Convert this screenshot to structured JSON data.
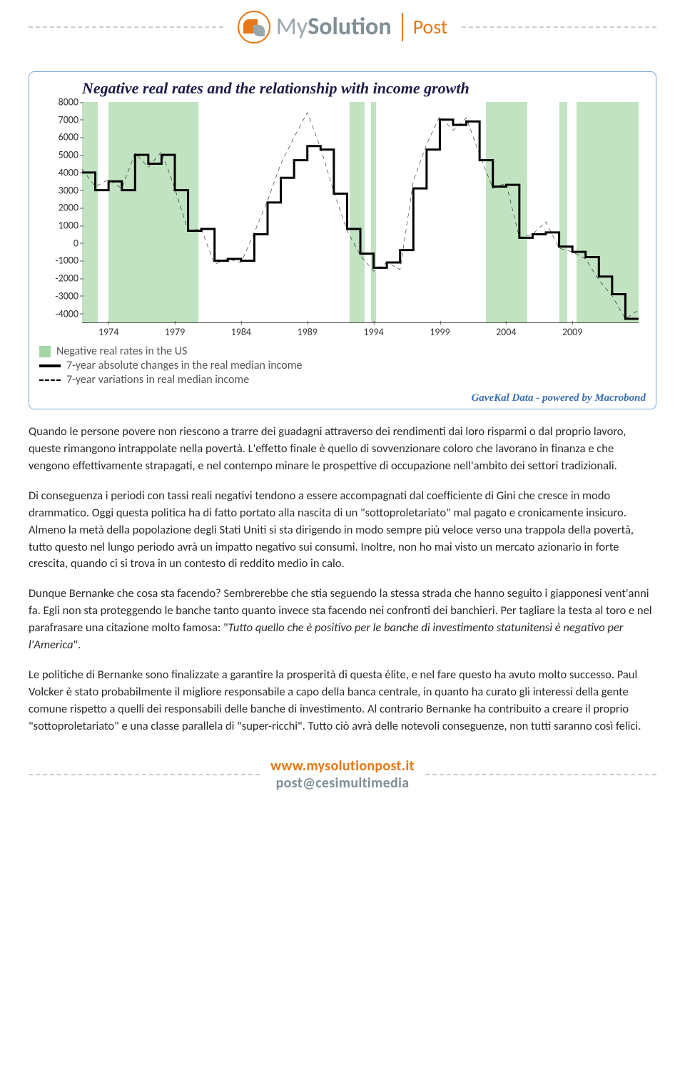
{
  "logo": {
    "text_main": "MySolution",
    "text_sub": "Post"
  },
  "chart": {
    "type": "line",
    "title": "Negative real rates and the relationship with income growth",
    "credit": "GaveKal Data - powered by Macrobond",
    "background_color": "#ffffff",
    "border_color": "#7aa8d8",
    "x_range": [
      1972,
      2014
    ],
    "x_ticks": [
      1974,
      1979,
      1984,
      1989,
      1994,
      1999,
      2004,
      2009
    ],
    "y_range": [
      -4500,
      8000
    ],
    "y_ticks": [
      -4000,
      -3000,
      -2000,
      -1000,
      0,
      1000,
      2000,
      3000,
      4000,
      5000,
      6000,
      7000,
      8000
    ],
    "band_color": "rgba(142,204,142,0.55)",
    "bands": [
      [
        1972,
        1973.2
      ],
      [
        1974,
        1980.8
      ],
      [
        1992.2,
        1993.3
      ],
      [
        1993.8,
        1994.2
      ],
      [
        2002.5,
        2005.6
      ],
      [
        2008,
        2008.6
      ],
      [
        2009.3,
        2014
      ]
    ],
    "legend": [
      {
        "kind": "band",
        "label": "Negative real rates in the US"
      },
      {
        "kind": "solid",
        "label": "7-year absolute changes in the real median income"
      },
      {
        "kind": "dash",
        "label": "7-year variations in real median income"
      }
    ],
    "series_solid": {
      "color": "#000000",
      "width": 3,
      "points": [
        [
          1972,
          4000
        ],
        [
          1973,
          4000
        ],
        [
          1973,
          3000
        ],
        [
          1974,
          3000
        ],
        [
          1974,
          3500
        ],
        [
          1975,
          3500
        ],
        [
          1975,
          3000
        ],
        [
          1976,
          3000
        ],
        [
          1976,
          5000
        ],
        [
          1977,
          5000
        ],
        [
          1977,
          4500
        ],
        [
          1978,
          4500
        ],
        [
          1978,
          5000
        ],
        [
          1979,
          5000
        ],
        [
          1979,
          3000
        ],
        [
          1980,
          3000
        ],
        [
          1980,
          700
        ],
        [
          1981,
          700
        ],
        [
          1981,
          800
        ],
        [
          1982,
          800
        ],
        [
          1982,
          -1000
        ],
        [
          1983,
          -1000
        ],
        [
          1983,
          -900
        ],
        [
          1984,
          -900
        ],
        [
          1984,
          -1000
        ],
        [
          1985,
          -1000
        ],
        [
          1985,
          500
        ],
        [
          1986,
          500
        ],
        [
          1986,
          2300
        ],
        [
          1987,
          2300
        ],
        [
          1987,
          3700
        ],
        [
          1988,
          3700
        ],
        [
          1988,
          4700
        ],
        [
          1989,
          4700
        ],
        [
          1989,
          5500
        ],
        [
          1990,
          5500
        ],
        [
          1990,
          5300
        ],
        [
          1991,
          5300
        ],
        [
          1991,
          2800
        ],
        [
          1992,
          2800
        ],
        [
          1992,
          800
        ],
        [
          1993,
          800
        ],
        [
          1993,
          -600
        ],
        [
          1994,
          -600
        ],
        [
          1994,
          -1400
        ],
        [
          1995,
          -1400
        ],
        [
          1995,
          -1100
        ],
        [
          1996,
          -1100
        ],
        [
          1996,
          -400
        ],
        [
          1997,
          -400
        ],
        [
          1997,
          3100
        ],
        [
          1998,
          3100
        ],
        [
          1998,
          5300
        ],
        [
          1999,
          5300
        ],
        [
          1999,
          7000
        ],
        [
          2000,
          7000
        ],
        [
          2000,
          6700
        ],
        [
          2001,
          6700
        ],
        [
          2001,
          6900
        ],
        [
          2002,
          6900
        ],
        [
          2002,
          4700
        ],
        [
          2003,
          4700
        ],
        [
          2003,
          3200
        ],
        [
          2004,
          3200
        ],
        [
          2004,
          3300
        ],
        [
          2005,
          3300
        ],
        [
          2005,
          300
        ],
        [
          2006,
          300
        ],
        [
          2006,
          500
        ],
        [
          2007,
          500
        ],
        [
          2007,
          600
        ],
        [
          2008,
          600
        ],
        [
          2008,
          -200
        ],
        [
          2009,
          -200
        ],
        [
          2009,
          -500
        ],
        [
          2010,
          -500
        ],
        [
          2010,
          -800
        ],
        [
          2011,
          -800
        ],
        [
          2011,
          -1900
        ],
        [
          2012,
          -1900
        ],
        [
          2012,
          -2900
        ],
        [
          2013,
          -2900
        ],
        [
          2013,
          -4300
        ],
        [
          2014,
          -4300
        ]
      ]
    },
    "series_dash": {
      "color": "#000000",
      "width": 1.6,
      "dash": "6 5",
      "points": [
        [
          1972,
          4200
        ],
        [
          1973,
          3200
        ],
        [
          1974,
          3600
        ],
        [
          1975,
          3100
        ],
        [
          1976,
          5100
        ],
        [
          1977,
          4300
        ],
        [
          1978,
          5200
        ],
        [
          1979,
          3100
        ],
        [
          1980,
          700
        ],
        [
          1981,
          800
        ],
        [
          1982,
          -1200
        ],
        [
          1983,
          -900
        ],
        [
          1984,
          -1100
        ],
        [
          1985,
          600
        ],
        [
          1986,
          2400
        ],
        [
          1987,
          4500
        ],
        [
          1988,
          6000
        ],
        [
          1989,
          7400
        ],
        [
          1990,
          5400
        ],
        [
          1991,
          2900
        ],
        [
          1992,
          700
        ],
        [
          1993,
          -700
        ],
        [
          1994,
          -1600
        ],
        [
          1995,
          -1100
        ],
        [
          1996,
          -1500
        ],
        [
          1997,
          3500
        ],
        [
          1998,
          5600
        ],
        [
          1999,
          7200
        ],
        [
          2000,
          6400
        ],
        [
          2001,
          7100
        ],
        [
          2002,
          5000
        ],
        [
          2003,
          3100
        ],
        [
          2004,
          3400
        ],
        [
          2005,
          300
        ],
        [
          2006,
          500
        ],
        [
          2007,
          1200
        ],
        [
          2008,
          -300
        ],
        [
          2009,
          -500
        ],
        [
          2010,
          -900
        ],
        [
          2011,
          -2100
        ],
        [
          2012,
          -3000
        ],
        [
          2013,
          -4300
        ],
        [
          2014,
          -3800
        ]
      ]
    }
  },
  "paragraphs": [
    "Quando le persone povere non riescono a trarre dei guadagni attraverso dei rendimenti dai loro risparmi o dal proprio lavoro, queste rimangono intrappolate nella povertà. L'effetto finale è quello di sovvenzionare coloro che lavorano in finanza e che vengono effettivamente strapagati, e nel contempo minare le prospettive di occupazione nell'ambito dei settori tradizionali.",
    "Di conseguenza i periodi con tassi reali negativi tendono a essere accompagnati dal coefficiente di Gini che cresce in modo drammatico. Oggi questa politica ha di fatto portato alla nascita di un \"sottoproletariato\" mal pagato e cronicamente insicuro. Almeno la metà della popolazione degli Stati Uniti si sta dirigendo in modo sempre più veloce verso una trappola della povertà, tutto questo nel lungo periodo avrà un impatto negativo sui consumi. Inoltre, non ho mai visto un mercato azionario in forte crescita, quando ci si trova in un contesto di reddito medio in calo.",
    "Dunque Bernanke che cosa sta facendo? Sembrerebbe che stia seguendo la stessa strada che hanno seguito i giapponesi vent'anni fa. Egli non sta proteggendo le banche tanto quanto invece sta facendo nei confronti dei banchieri. Per tagliare la testa al toro e nel parafrasare una citazione molto famosa: \"<em>Tutto quello che è positivo per le banche di investimento statunitensi è negativo per l'America</em>\".",
    "Le politiche di Bernanke sono finalizzate a garantire la prosperità di questa élite, e nel fare questo ha avuto molto successo. Paul Volcker è stato probabilmente il migliore responsabile a capo della banca centrale, in quanto ha curato gli interessi della gente comune rispetto a quelli dei responsabili delle banche di investimento. Al contrario Bernanke ha contribuito a creare il proprio \"sottoproletariato\" e una classe parallela di \"super-ricchi\". Tutto ciò avrà delle notevoli conseguenze, non tutti saranno così felici."
  ],
  "footer": {
    "line1": "www.mysolutionpost.it",
    "line2": "post@cesimultimedia"
  }
}
